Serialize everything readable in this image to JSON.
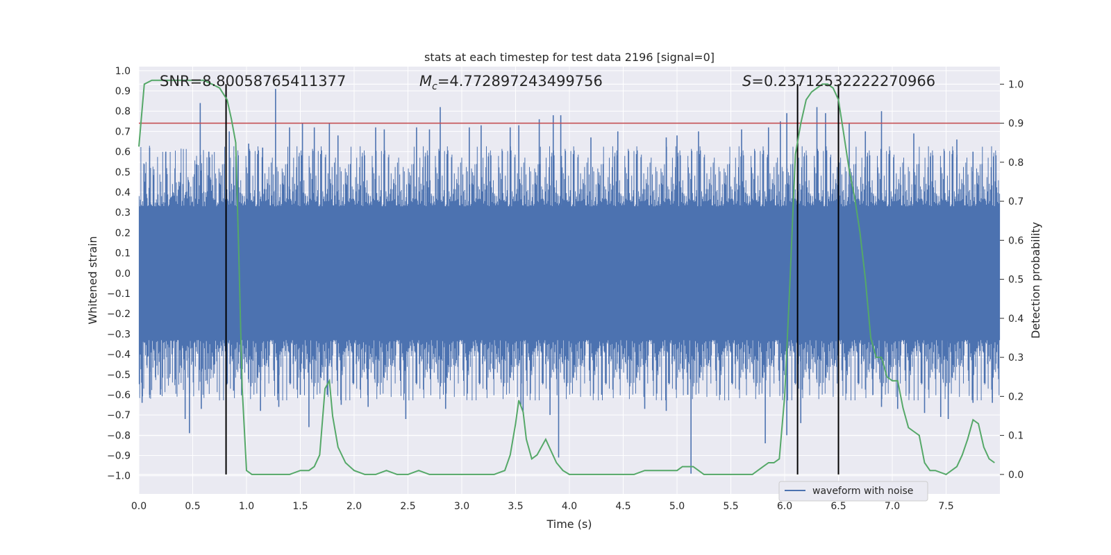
{
  "chart_data": {
    "type": "line",
    "title": "stats at each timestep for test data 2196 [signal=0]",
    "xlabel": "Time (s)",
    "ylabel": "Whitened strain",
    "y2label": "Detection probability",
    "xlim": [
      0,
      8
    ],
    "ylim": [
      -1.09,
      1.02
    ],
    "y2lim": [
      -0.05,
      1.045
    ],
    "xticks": [
      "0.0",
      "0.5",
      "1.0",
      "1.5",
      "2.0",
      "2.5",
      "3.0",
      "3.5",
      "4.0",
      "4.5",
      "5.0",
      "5.5",
      "6.0",
      "6.5",
      "7.0",
      "7.5"
    ],
    "yticks": [
      "1.0",
      "0.9",
      "0.8",
      "0.7",
      "0.6",
      "0.5",
      "0.4",
      "0.3",
      "0.2",
      "0.1",
      "0.0",
      "−0.1",
      "−0.2",
      "−0.3",
      "−0.4",
      "−0.5",
      "−0.6",
      "−0.7",
      "−0.8",
      "−0.9",
      "−1.0"
    ],
    "y2ticks": [
      "1.0",
      "0.9",
      "0.8",
      "0.7",
      "0.6",
      "0.5",
      "0.4",
      "0.3",
      "0.2",
      "0.1",
      "0.0"
    ],
    "grid": true,
    "legend": {
      "placement": "lower-right",
      "entries": [
        "waveform with noise"
      ]
    },
    "annotations": {
      "snr": "SNR=8.80058765411377",
      "mc_symbol": "M",
      "mc_sub": "c",
      "mc_value": "=4.772897243499756",
      "s_symbol": "S",
      "s_value": "=0.23712532222270966"
    },
    "threshold": 0.9,
    "vlines": [
      0.81,
      6.12,
      6.5
    ],
    "waveform": {
      "name": "waveform with noise",
      "envelope": 0.33,
      "peaks": [
        [
          0.1,
          0.62
        ],
        [
          0.25,
          0.6
        ],
        [
          0.57,
          0.84
        ],
        [
          0.65,
          0.6
        ],
        [
          0.84,
          0.7
        ],
        [
          1.02,
          0.64
        ],
        [
          1.15,
          0.62
        ],
        [
          1.27,
          0.91
        ],
        [
          1.4,
          0.72
        ],
        [
          1.52,
          0.74
        ],
        [
          1.63,
          0.72
        ],
        [
          1.77,
          0.74
        ],
        [
          1.85,
          0.68
        ],
        [
          2.2,
          0.72
        ],
        [
          2.28,
          0.71
        ],
        [
          2.58,
          0.72
        ],
        [
          2.7,
          0.71
        ],
        [
          2.8,
          0.82
        ],
        [
          3.07,
          0.72
        ],
        [
          3.18,
          0.73
        ],
        [
          3.45,
          0.72
        ],
        [
          3.53,
          0.73
        ],
        [
          3.72,
          0.76
        ],
        [
          3.85,
          0.78
        ],
        [
          3.92,
          0.78
        ],
        [
          4.2,
          0.67
        ],
        [
          4.45,
          0.7
        ],
        [
          4.9,
          0.67
        ],
        [
          5.0,
          0.68
        ],
        [
          5.2,
          0.7
        ],
        [
          5.6,
          0.71
        ],
        [
          5.85,
          0.72
        ],
        [
          5.96,
          0.75
        ],
        [
          6.02,
          0.79
        ],
        [
          6.3,
          0.82
        ],
        [
          6.38,
          0.79
        ],
        [
          6.6,
          0.74
        ],
        [
          6.75,
          0.7
        ],
        [
          6.9,
          0.8
        ],
        [
          7.2,
          0.69
        ],
        [
          7.6,
          0.66
        ],
        [
          7.75,
          0.6
        ]
      ],
      "troughs": [
        [
          0.03,
          -0.64
        ],
        [
          0.1,
          -0.6
        ],
        [
          0.2,
          -0.6
        ],
        [
          0.43,
          -0.72
        ],
        [
          0.47,
          -0.79
        ],
        [
          0.58,
          -0.67
        ],
        [
          0.88,
          -0.58
        ],
        [
          1.13,
          -0.68
        ],
        [
          1.3,
          -0.66
        ],
        [
          1.5,
          -0.6
        ],
        [
          1.58,
          -0.76
        ],
        [
          1.75,
          -0.6
        ],
        [
          1.88,
          -0.65
        ],
        [
          2.13,
          -0.66
        ],
        [
          2.48,
          -0.72
        ],
        [
          2.85,
          -0.67
        ],
        [
          3.55,
          -0.65
        ],
        [
          3.57,
          -0.68
        ],
        [
          3.82,
          -0.7
        ],
        [
          3.9,
          -0.91
        ],
        [
          4.3,
          -0.6
        ],
        [
          4.7,
          -0.67
        ],
        [
          4.9,
          -0.68
        ],
        [
          5.1,
          -0.6
        ],
        [
          5.13,
          -0.99
        ],
        [
          5.4,
          -0.6
        ],
        [
          5.82,
          -0.84
        ],
        [
          6.02,
          -0.8
        ],
        [
          6.15,
          -0.74
        ],
        [
          6.82,
          -0.6
        ],
        [
          6.9,
          -0.66
        ],
        [
          7.05,
          -0.67
        ],
        [
          7.3,
          -0.69
        ],
        [
          7.45,
          -0.71
        ],
        [
          7.52,
          -0.72
        ],
        [
          7.75,
          -0.64
        ],
        [
          7.93,
          -0.64
        ]
      ]
    },
    "probability": {
      "x": [
        0.0,
        0.05,
        0.12,
        0.2,
        0.3,
        0.4,
        0.5,
        0.6,
        0.68,
        0.75,
        0.82,
        0.86,
        0.9,
        0.93,
        0.96,
        1.0,
        1.05,
        1.1,
        1.2,
        1.3,
        1.4,
        1.5,
        1.58,
        1.63,
        1.68,
        1.73,
        1.77,
        1.8,
        1.85,
        1.92,
        2.0,
        2.1,
        2.2,
        2.3,
        2.4,
        2.5,
        2.6,
        2.7,
        2.8,
        2.9,
        3.0,
        3.1,
        3.2,
        3.3,
        3.4,
        3.45,
        3.5,
        3.53,
        3.57,
        3.6,
        3.65,
        3.7,
        3.78,
        3.83,
        3.88,
        3.94,
        4.0,
        4.1,
        4.2,
        4.3,
        4.4,
        4.5,
        4.6,
        4.7,
        4.75,
        4.8,
        4.9,
        5.0,
        5.05,
        5.1,
        5.15,
        5.2,
        5.25,
        5.3,
        5.4,
        5.5,
        5.6,
        5.7,
        5.75,
        5.8,
        5.85,
        5.9,
        5.95,
        6.0,
        6.05,
        6.1,
        6.15,
        6.2,
        6.25,
        6.3,
        6.35,
        6.4,
        6.45,
        6.5,
        6.55,
        6.6,
        6.65,
        6.7,
        6.75,
        6.8,
        6.85,
        6.9,
        6.95,
        7.0,
        7.05,
        7.1,
        7.15,
        7.2,
        7.25,
        7.3,
        7.35,
        7.4,
        7.5,
        7.55,
        7.6,
        7.65,
        7.7,
        7.75,
        7.8,
        7.85,
        7.9,
        7.95
      ],
      "y": [
        0.84,
        1.0,
        1.01,
        1.01,
        1.01,
        1.01,
        1.01,
        1.01,
        1.0,
        0.99,
        0.96,
        0.91,
        0.85,
        0.55,
        0.22,
        0.01,
        0.0,
        0.0,
        0.0,
        0.0,
        0.0,
        0.01,
        0.01,
        0.02,
        0.05,
        0.22,
        0.24,
        0.15,
        0.07,
        0.03,
        0.01,
        0.0,
        0.0,
        0.01,
        0.0,
        0.0,
        0.01,
        0.0,
        0.0,
        0.0,
        0.0,
        0.0,
        0.0,
        0.0,
        0.01,
        0.05,
        0.13,
        0.19,
        0.16,
        0.09,
        0.04,
        0.05,
        0.09,
        0.06,
        0.03,
        0.01,
        0.0,
        0.0,
        0.0,
        0.0,
        0.0,
        0.0,
        0.0,
        0.01,
        0.01,
        0.01,
        0.01,
        0.01,
        0.02,
        0.02,
        0.02,
        0.01,
        0.0,
        0.0,
        0.0,
        0.0,
        0.0,
        0.0,
        0.01,
        0.02,
        0.03,
        0.03,
        0.04,
        0.2,
        0.5,
        0.82,
        0.9,
        0.96,
        0.98,
        0.99,
        1.0,
        1.0,
        0.99,
        0.96,
        0.87,
        0.78,
        0.71,
        0.62,
        0.5,
        0.35,
        0.3,
        0.3,
        0.25,
        0.24,
        0.24,
        0.17,
        0.12,
        0.11,
        0.1,
        0.03,
        0.01,
        0.01,
        0.0,
        0.01,
        0.02,
        0.05,
        0.09,
        0.14,
        0.13,
        0.07,
        0.04,
        0.03
      ]
    },
    "colors": {
      "background": "#eaeaf2",
      "grid": "#ffffff",
      "waveform": "#4c72b0",
      "probability": "#55a868",
      "threshold": "#c44e52",
      "vline": "#000000"
    }
  }
}
